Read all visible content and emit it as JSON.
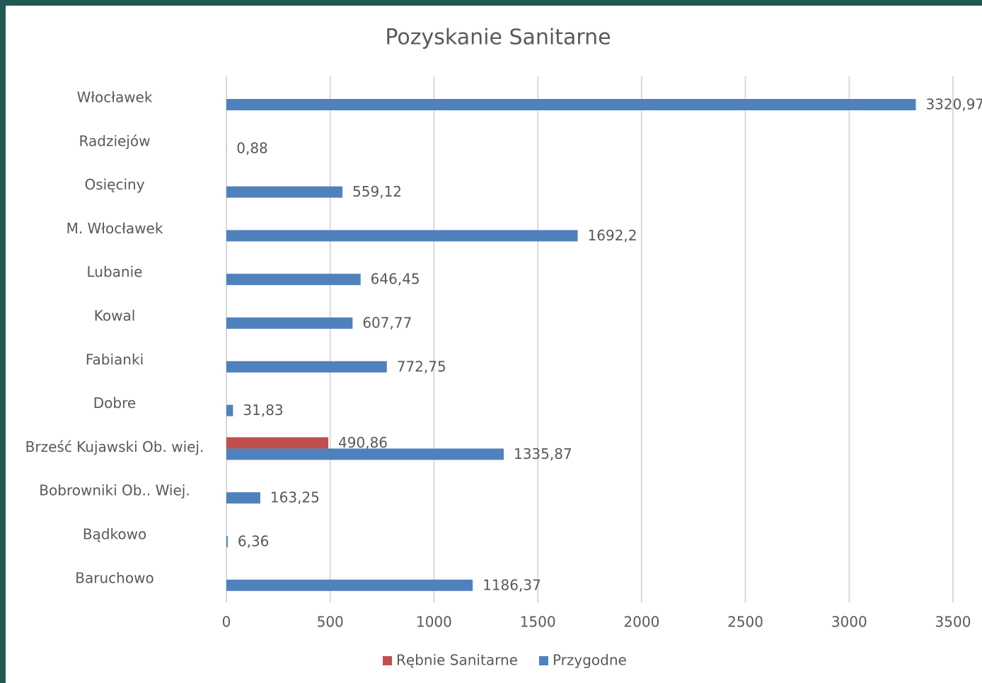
{
  "chart_data": {
    "type": "bar",
    "orientation": "horizontal",
    "title": "Pozyskanie Sanitarne",
    "categories": [
      "Włocławek",
      "Radziejów",
      "Osięciny",
      "M. Włocławek",
      "Lubanie",
      "Kowal",
      "Fabianki",
      "Dobre",
      "Brześć Kujawski Ob. wiej.",
      "Bobrowniki Ob.. Wiej.",
      "Bądkowo",
      "Baruchowo"
    ],
    "series": [
      {
        "name": "Rębnie Sanitarne",
        "color": "#c0504d",
        "values": [
          null,
          null,
          null,
          null,
          null,
          null,
          null,
          null,
          490.86,
          null,
          null,
          null
        ],
        "value_labels": [
          null,
          null,
          null,
          null,
          null,
          null,
          null,
          null,
          "490,86",
          null,
          null,
          null
        ]
      },
      {
        "name": "Przygodne",
        "color": "#4f81bd",
        "values": [
          3320.97,
          0.88,
          559.12,
          1692.2,
          646.45,
          607.77,
          772.75,
          31.83,
          1335.87,
          163.25,
          6.36,
          1186.37
        ],
        "value_labels": [
          "3320,97",
          "0,88",
          "559,12",
          "1692,2",
          "646,45",
          "607,77",
          "772,75",
          "31,83",
          "1335,87",
          "163,25",
          "6,36",
          "1186,37"
        ]
      }
    ],
    "xlim": [
      0,
      3500
    ],
    "xticks": [
      0,
      500,
      1000,
      1500,
      2000,
      2500,
      3000,
      3500
    ],
    "grid": true,
    "legend": "bottom"
  }
}
